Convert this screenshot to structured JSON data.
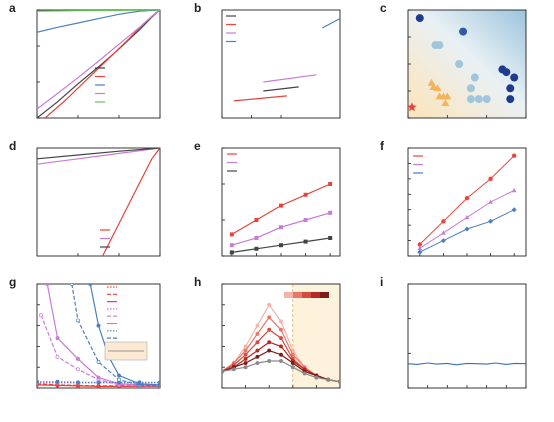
{
  "chart_data": [
    {
      "panel": "a",
      "type": "line",
      "xlabel": "Potential (V) vs RHE",
      "ylabel": "Current density (mA cm⁻²)",
      "xlim": [
        -0.3,
        0
      ],
      "ylim": [
        -300,
        0
      ],
      "xticks": [
        "-0.3",
        "-0.2",
        "-0.1",
        "0"
      ],
      "yticks": [
        "-300",
        "-200",
        "-100",
        "0"
      ],
      "legend_position": "bottom-right",
      "series": [
        {
          "name": "20% Pt/C",
          "color": "#444444",
          "x": [
            -0.3,
            -0.25,
            -0.2,
            -0.15,
            -0.1,
            -0.05,
            -0.02,
            0
          ],
          "y": [
            -300,
            -255,
            -205,
            -158,
            -108,
            -55,
            -20,
            0
          ]
        },
        {
          "name": "Pt/Mo₂N-NrGO",
          "color": "#e8433c",
          "x": [
            -0.28,
            -0.23,
            -0.18,
            -0.13,
            -0.08,
            -0.04,
            -0.01,
            0
          ],
          "y": [
            -300,
            -250,
            -195,
            -140,
            -85,
            -38,
            -8,
            0
          ]
        },
        {
          "name": "Mo₂N-NrGO",
          "color": "#4a7fc1",
          "x": [
            -0.3,
            -0.25,
            -0.2,
            -0.15,
            -0.1,
            -0.05,
            0
          ],
          "y": [
            -62,
            -48,
            -36,
            -24,
            -12,
            -3,
            0
          ]
        },
        {
          "name": "Pt-NrGO",
          "color": "#c77bd6",
          "x": [
            -0.3,
            -0.25,
            -0.2,
            -0.15,
            -0.1,
            -0.05,
            -0.02,
            0
          ],
          "y": [
            -275,
            -232,
            -188,
            -142,
            -95,
            -48,
            -18,
            0
          ]
        },
        {
          "name": "NrGO",
          "color": "#6bbf5a",
          "x": [
            -0.3,
            -0.2,
            -0.1,
            0
          ],
          "y": [
            -3,
            -2,
            -1,
            0
          ]
        }
      ]
    },
    {
      "panel": "b",
      "type": "line",
      "xlabel": "log ( | j | (mA cm⁻²) )",
      "ylabel": "Potential (V) vs RHE",
      "xlim": [
        0,
        2
      ],
      "ylim": [
        -0.1,
        0.5
      ],
      "xticks": [
        "0.0",
        "0.5",
        "1.0"
      ],
      "legend_position": "top-left",
      "series": [
        {
          "name": "20% Pt/C",
          "color": "#444444",
          "x": [
            0.7,
            1.3
          ],
          "y": [
            0.05,
            0.073
          ]
        },
        {
          "name": "Pt/Mo₂N-NrGO",
          "color": "#e8433c",
          "x": [
            0.2,
            1.1
          ],
          "y": [
            -0.005,
            0.023
          ]
        },
        {
          "name": "Pt-NrGO",
          "color": "#c77bd6",
          "x": [
            0.7,
            1.6
          ],
          "y": [
            0.1,
            0.14
          ]
        },
        {
          "name": "Mo₂N-NrGO",
          "color": "#4a7fc1",
          "x": [
            1.7,
            2.0
          ],
          "y": [
            0.4,
            0.453
          ]
        }
      ],
      "annotations": [
        "178 mV dec⁻¹",
        "44 mV dec⁻¹",
        "39 mV dec⁻¹",
        "31 mV dec⁻¹"
      ]
    },
    {
      "panel": "c",
      "type": "scatter",
      "xlabel": "η₁₀ (mV)",
      "ylabel": "Tafel Slope (mV dec⁻¹)",
      "xlim": [
        10,
        40
      ],
      "ylim": [
        20,
        60
      ],
      "xticks": [
        "10",
        "20",
        "30",
        "40"
      ],
      "yticks": [
        "20",
        "30",
        "40",
        "50",
        "60"
      ],
      "annotation": "This Work",
      "points": [
        {
          "label": "2",
          "x": 13,
          "y": 57,
          "color": "#1f3b8f"
        },
        {
          "label": "15",
          "x": 24,
          "y": 52,
          "color": "#2e5aa8"
        },
        {
          "label": "3",
          "x": 17,
          "y": 47,
          "color": "#9fc6dd"
        },
        {
          "label": "5",
          "x": 18,
          "y": 47,
          "color": "#9fc6dd"
        },
        {
          "label": "17",
          "x": 23,
          "y": 40,
          "color": "#9fc6dd"
        },
        {
          "label": "6",
          "x": 27,
          "y": 35,
          "color": "#9fc6dd"
        },
        {
          "label": "21",
          "x": 26,
          "y": 31,
          "color": "#9fc6dd"
        },
        {
          "label": "8",
          "x": 26,
          "y": 27,
          "color": "#9fc6dd"
        },
        {
          "label": "9",
          "x": 28,
          "y": 27,
          "color": "#9fc6dd"
        },
        {
          "label": "18",
          "x": 30,
          "y": 27,
          "color": "#9fc6dd"
        },
        {
          "label": "10",
          "x": 34,
          "y": 38,
          "color": "#1f3b8f"
        },
        {
          "label": "16",
          "x": 35,
          "y": 37,
          "color": "#1f3b8f"
        },
        {
          "label": "20",
          "x": 37,
          "y": 35,
          "color": "#1f3b8f"
        },
        {
          "label": "4",
          "x": 36,
          "y": 31,
          "color": "#1f3b8f"
        },
        {
          "label": "7",
          "x": 36,
          "y": 27,
          "color": "#1f3b8f"
        },
        {
          "label": "14",
          "x": 16,
          "y": 33,
          "color": "#f2b45c"
        },
        {
          "label": "1",
          "x": 16.5,
          "y": 31.5,
          "color": "#f2b45c"
        },
        {
          "label": "20",
          "x": 17.5,
          "y": 31,
          "color": "#f2b45c"
        },
        {
          "label": "19",
          "x": 18,
          "y": 28,
          "color": "#f2b45c"
        },
        {
          "label": "13",
          "x": 19,
          "y": 28,
          "color": "#f2b45c"
        },
        {
          "label": "12",
          "x": 20,
          "y": 28,
          "color": "#f2b45c"
        },
        {
          "label": "11",
          "x": 19.5,
          "y": 25.5,
          "color": "#f2b45c"
        },
        {
          "label": "This Work",
          "x": 11,
          "y": 24,
          "color": "#e8433c",
          "marker": "star"
        }
      ]
    },
    {
      "panel": "d",
      "type": "line",
      "xlabel": "Potential (V) vs RHE",
      "ylabel": "Current density (A mgₜₜ⁻¹)",
      "xlim": [
        -0.3,
        0
      ],
      "ylim": [
        -40,
        0
      ],
      "xticks": [
        "-0.2",
        "-0.1",
        "0.0"
      ],
      "legend_position": "bottom-right",
      "series": [
        {
          "name": "Pt/Mo₂N-NrGO",
          "color": "#e8433c",
          "x": [
            -0.14,
            -0.12,
            -0.1,
            -0.08,
            -0.06,
            -0.04,
            -0.02,
            0
          ],
          "y": [
            -40,
            -34,
            -28,
            -22,
            -16,
            -10,
            -4,
            0
          ]
        },
        {
          "name": "Pt-NrGO",
          "color": "#c77bd6",
          "x": [
            -0.3,
            -0.2,
            -0.1,
            0
          ],
          "y": [
            -6,
            -4,
            -2,
            0
          ]
        },
        {
          "name": "20% Pt/C",
          "color": "#444444",
          "x": [
            -0.3,
            -0.2,
            -0.1,
            0
          ],
          "y": [
            -4,
            -2.6,
            -1.2,
            0
          ]
        }
      ]
    },
    {
      "panel": "e",
      "type": "line",
      "xlabel": "Overpotential (V) vs RHE",
      "ylabel": "TOF (H₂ s⁻¹)",
      "xlim": [
        0.03,
        0.27
      ],
      "ylim": [
        0,
        30
      ],
      "xticks": [
        "0.05",
        "0.10",
        "0.15",
        "0.20",
        "0.25"
      ],
      "yticks": [
        "0",
        "10",
        "20",
        "30"
      ],
      "categories": [
        0.05,
        0.1,
        0.15,
        0.2,
        0.25
      ],
      "legend_position": "top-left",
      "series": [
        {
          "name": "Pt/Mo₂N-NrGO",
          "color": "#e8433c",
          "values": [
            6,
            10,
            14,
            17,
            20
          ]
        },
        {
          "name": "Pt-NrGO",
          "color": "#c77bd6",
          "values": [
            3,
            5,
            8,
            10,
            12
          ]
        },
        {
          "name": "20% Pt/C",
          "color": "#444444",
          "values": [
            1,
            2,
            3,
            4,
            5
          ]
        }
      ]
    },
    {
      "panel": "f",
      "type": "scatter",
      "xlabel": "Scan rate (mV)",
      "ylabel": "Δj₀.₁₅ (mA cm⁻²)",
      "xlim": [
        10,
        110
      ],
      "ylim": [
        0.4,
        3.2
      ],
      "xticks": [
        "20",
        "40",
        "60",
        "80",
        "100"
      ],
      "yticks": [
        "0.4",
        "0.8",
        "1.2",
        "1.6",
        "2.0",
        "2.4",
        "2.8",
        "3.2"
      ],
      "legend_position": "top-left",
      "annotations": [
        "28.39 mF cm⁻²",
        "19.23 mF cm⁻²",
        "14.58 mF cm⁻²"
      ],
      "x": [
        20,
        40,
        60,
        80,
        100
      ],
      "series": [
        {
          "name": "Pt/Mo₂N-NrGO",
          "color": "#e8433c",
          "values": [
            0.7,
            1.3,
            1.9,
            2.4,
            3.0
          ]
        },
        {
          "name": "Pt-NrGO",
          "color": "#c77bd6",
          "values": [
            0.6,
            1.0,
            1.4,
            1.8,
            2.1
          ]
        },
        {
          "name": "Mo₂N-NrGO",
          "color": "#4a7fc1",
          "values": [
            0.5,
            0.8,
            1.1,
            1.3,
            1.6
          ]
        }
      ]
    },
    {
      "panel": "g",
      "type": "line",
      "xlabel": "Overpotential (mV)",
      "ylabel": "R (Ω)",
      "xlim": [
        0,
        300
      ],
      "ylim": [
        0,
        100
      ],
      "xticks": [
        "0",
        "50",
        "100",
        "150",
        "200",
        "250",
        "300"
      ],
      "yticks": [
        "0",
        "20",
        "40",
        "60",
        "80",
        "100"
      ],
      "legend_position": "top-right",
      "circuit_labels": [
        "Rₛ",
        "CPE1",
        "CPE2",
        "R₁",
        "R₂"
      ],
      "series": [
        {
          "name": "Rₛ Pt/Mo₂N-NrGO",
          "color": "#e8433c",
          "dash": "dot",
          "x": [
            0,
            50,
            100,
            150,
            200,
            250,
            300
          ],
          "y": [
            5,
            5,
            5,
            5,
            5,
            5,
            5
          ]
        },
        {
          "name": "R₁ Pt/Mo₂N-NrGO",
          "color": "#e8433c",
          "dash": "dash",
          "x": [
            0,
            50,
            100,
            150,
            200,
            250,
            300
          ],
          "y": [
            4,
            3,
            2.5,
            2,
            2,
            2,
            2
          ]
        },
        {
          "name": "R₂ Pt/Mo₂N-NrGO",
          "color": "#e8433c",
          "dash": "solid",
          "x": [
            0,
            50,
            100,
            150,
            200,
            250,
            300
          ],
          "y": [
            3,
            2.5,
            2,
            1.5,
            1.5,
            1.5,
            1.5
          ]
        },
        {
          "name": "Rₛ Pt-NrGO",
          "color": "#c77bd6",
          "dash": "dot",
          "x": [
            0,
            50,
            100,
            150,
            200,
            250,
            300
          ],
          "y": [
            5,
            5,
            5,
            5,
            5,
            5,
            5
          ]
        },
        {
          "name": "R₁ Pt-NrGO",
          "color": "#c77bd6",
          "dash": "dash",
          "x": [
            10,
            50,
            100,
            150,
            200,
            250,
            300
          ],
          "y": [
            70,
            30,
            18,
            8,
            3,
            2,
            2
          ]
        },
        {
          "name": "R₂ Pt-NrGO",
          "color": "#c77bd6",
          "dash": "solid",
          "x": [
            25,
            50,
            100,
            150,
            200,
            250,
            300
          ],
          "y": [
            100,
            48,
            28,
            10,
            4,
            3,
            2
          ]
        },
        {
          "name": "Rₛ Mo₂N-NrGO",
          "color": "#4a7fc1",
          "dash": "dot",
          "x": [
            0,
            50,
            100,
            150,
            200,
            250,
            300
          ],
          "y": [
            6,
            6,
            5.5,
            5.5,
            5.5,
            5.5,
            5.5
          ]
        },
        {
          "name": "R₁ Mo₂N-NrGO",
          "color": "#4a7fc1",
          "dash": "dash",
          "x": [
            85,
            100,
            150,
            200,
            250,
            300
          ],
          "y": [
            100,
            65,
            25,
            8,
            3,
            2
          ]
        },
        {
          "name": "R₂ Mo₂N-NrGO",
          "color": "#4a7fc1",
          "dash": "solid",
          "x": [
            130,
            150,
            175,
            200,
            250,
            300
          ],
          "y": [
            100,
            60,
            30,
            12,
            4,
            3
          ]
        }
      ]
    },
    {
      "panel": "h",
      "type": "line",
      "xlabel": "Log[Frequency(Hz)]",
      "ylabel": "-Phase angle (θ)",
      "xlim": [
        -1,
        4
      ],
      "ylim": [
        0,
        25
      ],
      "xticks": [
        "-1",
        "0",
        "1",
        "2",
        "3",
        "4"
      ],
      "yticks": [
        "0",
        "5",
        "10",
        "15",
        "20",
        "25"
      ],
      "colorbar_label": "0→250 mV",
      "series": [
        {
          "name": "0 mV",
          "color": "#f4b3a8",
          "x": [
            -1,
            -0.5,
            0,
            0.5,
            1,
            1.5,
            2,
            2.5,
            3,
            3.5,
            4
          ],
          "y": [
            4,
            6,
            10,
            15,
            20,
            16,
            9,
            5,
            3,
            2,
            1.5
          ]
        },
        {
          "name": "50 mV",
          "color": "#e8766a",
          "x": [
            -1,
            -0.5,
            0,
            0.5,
            1,
            1.5,
            2,
            2.5,
            3,
            3.5,
            4
          ],
          "y": [
            4,
            6,
            9,
            13,
            17,
            14,
            8,
            5,
            3,
            2,
            1.5
          ]
        },
        {
          "name": "100 mV",
          "color": "#d84a3e",
          "x": [
            -1,
            -0.5,
            0,
            0.5,
            1,
            1.5,
            2,
            2.5,
            3,
            3.5,
            4
          ],
          "y": [
            4,
            5.5,
            8,
            11,
            14,
            12,
            7,
            4.5,
            3,
            2,
            1.5
          ]
        },
        {
          "name": "150 mV",
          "color": "#b52a22",
          "x": [
            -1,
            -0.5,
            0,
            0.5,
            1,
            1.5,
            2,
            2.5,
            3,
            3.5,
            4
          ],
          "y": [
            4,
            5,
            7,
            9,
            11,
            10,
            6.5,
            4.5,
            3,
            2,
            1.5
          ]
        },
        {
          "name": "200 mV",
          "color": "#7e1c17",
          "x": [
            -1,
            -0.5,
            0,
            0.5,
            1,
            1.5,
            2,
            2.5,
            3,
            3.5,
            4
          ],
          "y": [
            4,
            5,
            6,
            7.5,
            9,
            8,
            6,
            4,
            3,
            2,
            1.5
          ]
        },
        {
          "name": "250 mV",
          "color": "#8a8a8a",
          "x": [
            -1,
            -0.5,
            0,
            0.5,
            1,
            1.5,
            2,
            2.5,
            3,
            3.5,
            4
          ],
          "y": [
            4,
            4.5,
            5,
            6,
            6.5,
            6.5,
            5,
            3.5,
            2.5,
            2,
            1.5
          ]
        }
      ]
    },
    {
      "panel": "i",
      "type": "line",
      "xlabel": "Time (h)",
      "ylabel": "Current density (mA cm⁻²)",
      "xlim": [
        0,
        66
      ],
      "ylim": [
        -300,
        0
      ],
      "xticks": [
        "0",
        "11",
        "22",
        "33",
        "44",
        "55",
        "66"
      ],
      "yticks": [
        "-300",
        "-200",
        "-100",
        "0"
      ],
      "annotation": "j ≈ 230 mA cm⁻²",
      "series": [
        {
          "name": "",
          "color": "#3a6fb5",
          "x": [
            0,
            5,
            11,
            16,
            22,
            27,
            33,
            38,
            44,
            49,
            55,
            60,
            66
          ],
          "y": [
            -230,
            -232,
            -228,
            -231,
            -229,
            -233,
            -229,
            -230,
            -231,
            -228,
            -232,
            -229,
            -230
          ]
        }
      ]
    }
  ]
}
